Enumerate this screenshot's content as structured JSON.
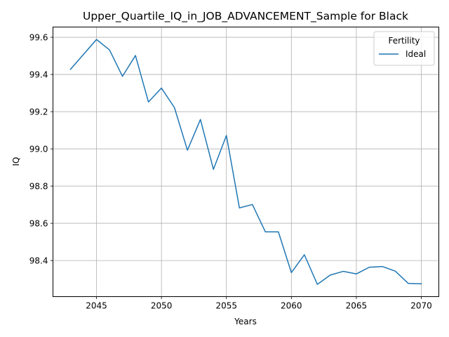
{
  "chart_data": {
    "type": "line",
    "title": "Upper_Quartile_IQ_in_JOB_ADVANCEMENT_Sample for Black",
    "xlabel": "Years",
    "ylabel": "IQ",
    "xlim": [
      2041.65,
      2071.35
    ],
    "ylim": [
      98.206,
      99.655
    ],
    "xticks": [
      2045,
      2050,
      2055,
      2060,
      2065,
      2070
    ],
    "yticks": [
      98.4,
      98.6,
      98.8,
      99.0,
      99.2,
      99.4,
      99.6
    ],
    "grid": true,
    "legend": {
      "title": "Fertility",
      "placement": "top-right"
    },
    "series": [
      {
        "name": "Ideal",
        "color": "#1f77b4",
        "x": [
          2043,
          2044,
          2045,
          2046,
          2047,
          2048,
          2049,
          2050,
          2051,
          2052,
          2053,
          2054,
          2055,
          2056,
          2057,
          2058,
          2059,
          2060,
          2061,
          2062,
          2063,
          2064,
          2065,
          2066,
          2067,
          2068,
          2069,
          2070
        ],
        "values": [
          99.428,
          99.508,
          99.588,
          99.532,
          99.39,
          99.502,
          99.252,
          99.327,
          99.222,
          98.993,
          99.158,
          98.89,
          99.072,
          98.683,
          98.701,
          98.554,
          98.554,
          98.335,
          98.431,
          98.272,
          98.322,
          98.342,
          98.328,
          98.364,
          98.368,
          98.343,
          98.277,
          98.275
        ]
      }
    ]
  }
}
